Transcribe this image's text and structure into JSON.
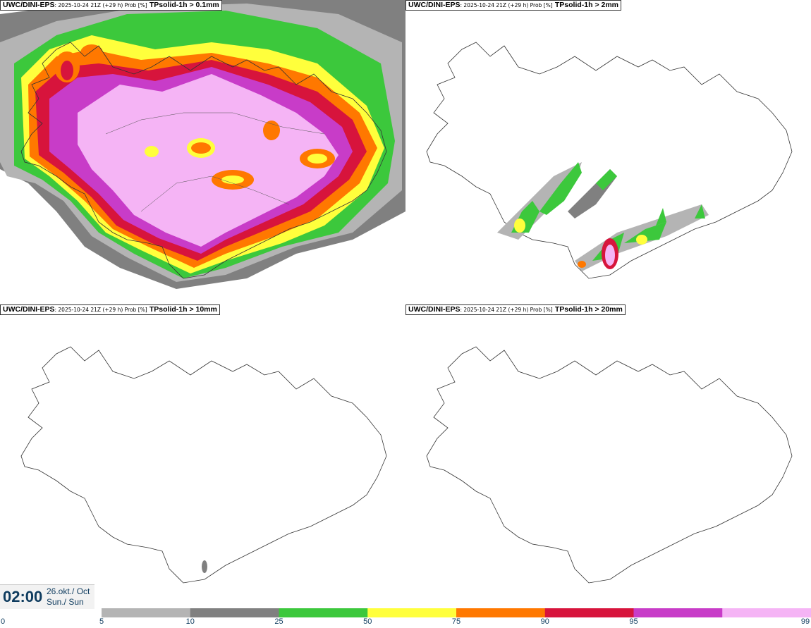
{
  "panels": [
    {
      "model": "UWC/DINI-EPS",
      "meta": ": 2025-10-24 21Z (+29 h) Prob [%]",
      "field": "TPsolid-1h > 0.1mm"
    },
    {
      "model": "UWC/DINI-EPS",
      "meta": ": 2025-10-24 21Z (+29 h) Prob [%]",
      "field": "TPsolid-1h > 2mm"
    },
    {
      "model": "UWC/DINI-EPS",
      "meta": ": 2025-10-24 21Z (+29 h) Prob [%]",
      "field": "TPsolid-1h > 10mm"
    },
    {
      "model": "UWC/DINI-EPS",
      "meta": ": 2025-10-24 21Z (+29 h) Prob [%]",
      "field": "TPsolid-1h > 20mm"
    }
  ],
  "valid_time": {
    "time": "02:00",
    "date_line1": "26.okt./ Oct",
    "date_line2": "Sun./ Sun"
  },
  "colorbar": {
    "ticks": [
      "0",
      "5",
      "10",
      "25",
      "50",
      "75",
      "90",
      "95",
      "99"
    ],
    "colors": [
      "#b4b4b4",
      "#808080",
      "#3cc83c",
      "#ffff3c",
      "#ff7800",
      "#d7143c",
      "#c83cc8",
      "#f5b4f5"
    ]
  }
}
